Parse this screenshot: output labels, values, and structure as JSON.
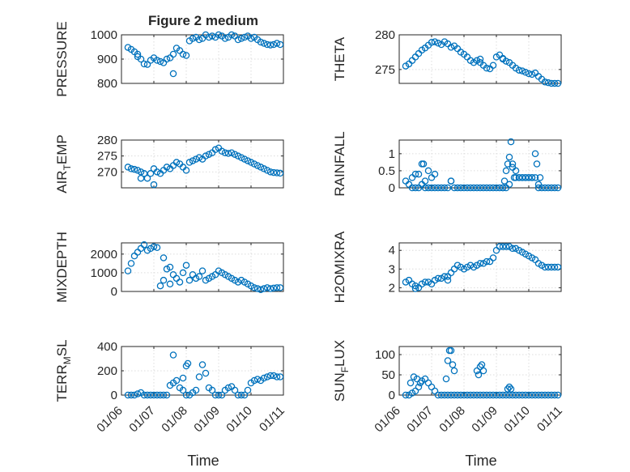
{
  "figure_title": "Figure 2 medium",
  "x_tick_labels": [
    "01/06",
    "01/07",
    "01/08",
    "01/09",
    "01/10",
    "01/11"
  ],
  "x_label": "Time",
  "colors": {
    "marker": "#0072BD",
    "axis": "#262626",
    "grid": "#dcdcdc"
  },
  "chart_data": [
    {
      "type": "scatter",
      "ylabel": "PRESSURE",
      "ylim": [
        800,
        1000
      ],
      "yticks": [
        800,
        900,
        1000
      ],
      "xlim": [
        0,
        5
      ],
      "x": [
        0.2,
        0.3,
        0.4,
        0.5,
        0.6,
        0.7,
        0.8,
        0.9,
        1.0,
        1.1,
        1.2,
        1.3,
        1.4,
        1.5,
        1.6,
        1.7,
        1.8,
        1.9,
        2.0,
        2.1,
        2.2,
        2.3,
        2.4,
        2.5,
        2.6,
        2.7,
        2.8,
        2.9,
        3.0,
        3.1,
        3.2,
        3.3,
        3.4,
        3.5,
        3.6,
        3.7,
        3.8,
        3.9,
        4.0,
        4.1,
        4.2,
        4.3,
        4.4,
        4.5,
        4.6,
        4.7,
        4.8,
        4.9,
        1.6,
        0.5
      ],
      "y": [
        948,
        940,
        930,
        920,
        900,
        880,
        878,
        895,
        905,
        895,
        890,
        885,
        900,
        905,
        920,
        945,
        935,
        920,
        915,
        975,
        985,
        990,
        980,
        985,
        1000,
        990,
        995,
        990,
        1000,
        995,
        985,
        990,
        1000,
        995,
        980,
        985,
        990,
        995,
        985,
        990,
        980,
        970,
        965,
        960,
        958,
        960,
        965,
        960,
        840,
        910
      ]
    },
    {
      "type": "scatter",
      "ylabel": "THETA",
      "ylim": [
        273,
        280
      ],
      "yticks": [
        275,
        280
      ],
      "xlim": [
        0,
        5
      ],
      "x": [
        0.2,
        0.3,
        0.4,
        0.5,
        0.6,
        0.7,
        0.8,
        0.9,
        1.0,
        1.1,
        1.2,
        1.3,
        1.4,
        1.5,
        1.6,
        1.7,
        1.8,
        1.9,
        2.0,
        2.1,
        2.2,
        2.3,
        2.4,
        2.5,
        2.6,
        2.7,
        2.8,
        2.9,
        3.0,
        3.1,
        3.2,
        3.3,
        3.4,
        3.5,
        3.6,
        3.7,
        3.8,
        3.9,
        4.0,
        4.1,
        4.2,
        4.3,
        4.4,
        4.5,
        4.6,
        4.7,
        4.8,
        4.9,
        2.5,
        3.2
      ],
      "y": [
        275.5,
        275.8,
        276.3,
        276.8,
        277.3,
        277.8,
        278.1,
        278.5,
        278.9,
        279.0,
        278.8,
        278.6,
        279.0,
        278.7,
        278.2,
        278.4,
        278.0,
        277.5,
        277.2,
        276.8,
        276.3,
        276.0,
        276.3,
        276.0,
        275.6,
        275.2,
        275.1,
        275.6,
        276.8,
        277.1,
        276.5,
        276.2,
        276.0,
        275.6,
        275.2,
        274.9,
        274.8,
        274.6,
        274.4,
        274.3,
        274.5,
        274.0,
        273.6,
        273.2,
        273.1,
        273.0,
        273.0,
        273.0,
        276.5,
        276.6
      ]
    },
    {
      "type": "scatter",
      "ylabel": "AIR_TEMP",
      "ylim": [
        265,
        280
      ],
      "yticks": [
        270,
        275,
        280
      ],
      "xlim": [
        0,
        5
      ],
      "x": [
        0.2,
        0.3,
        0.4,
        0.5,
        0.6,
        0.7,
        0.8,
        0.9,
        1.0,
        1.1,
        1.2,
        1.3,
        1.4,
        1.5,
        1.6,
        1.7,
        1.8,
        1.9,
        2.0,
        2.1,
        2.2,
        2.3,
        2.4,
        2.5,
        2.6,
        2.7,
        2.8,
        2.9,
        3.0,
        3.1,
        3.2,
        3.3,
        3.4,
        3.5,
        3.6,
        3.7,
        3.8,
        3.9,
        4.0,
        4.1,
        4.2,
        4.3,
        4.4,
        4.5,
        4.6,
        4.7,
        4.8,
        4.9,
        1.0,
        0.6
      ],
      "y": [
        271.5,
        271.0,
        270.8,
        270.5,
        270.0,
        269.5,
        268.0,
        269.5,
        271.0,
        270.0,
        269.5,
        270.5,
        271.5,
        271.0,
        272.0,
        273.0,
        272.5,
        271.5,
        270.5,
        273.0,
        273.5,
        274.0,
        274.5,
        274.0,
        275.0,
        275.5,
        276.0,
        277.0,
        277.5,
        276.5,
        276.0,
        275.8,
        276.0,
        275.5,
        275.0,
        274.5,
        274.0,
        273.5,
        273.0,
        272.5,
        272.0,
        271.5,
        271.0,
        270.5,
        270.0,
        269.8,
        269.7,
        269.6,
        266.0,
        268.0
      ]
    },
    {
      "type": "scatter",
      "ylabel": "RAINFALL",
      "ylim": [
        0,
        1.4
      ],
      "yticks": [
        0,
        0.5,
        1
      ],
      "xlim": [
        0,
        5
      ],
      "x": [
        0.2,
        0.3,
        0.4,
        0.5,
        0.6,
        0.7,
        0.8,
        0.9,
        1.0,
        1.1,
        1.2,
        1.3,
        1.4,
        1.5,
        1.6,
        1.7,
        1.8,
        1.9,
        2.0,
        2.1,
        2.2,
        2.3,
        2.4,
        2.5,
        2.6,
        2.7,
        2.8,
        2.9,
        3.0,
        3.1,
        3.2,
        3.3,
        3.4,
        3.5,
        3.6,
        3.7,
        3.8,
        3.9,
        4.0,
        4.1,
        4.2,
        4.3,
        4.4,
        4.5,
        4.6,
        4.7,
        4.8,
        4.9,
        0.4,
        0.5,
        0.6,
        0.7,
        0.75,
        0.8,
        0.9,
        1.0,
        1.1,
        1.6,
        3.2,
        3.25,
        3.3,
        3.35,
        3.4,
        3.45,
        3.5,
        3.55,
        3.6,
        3.7,
        3.8,
        3.9,
        4.0,
        4.1,
        4.2,
        4.25,
        4.3,
        4.35
      ],
      "y": [
        0.2,
        0.1,
        0.0,
        0.0,
        0.0,
        0.1,
        0.0,
        0.0,
        0.0,
        0.0,
        0.0,
        0.0,
        0.0,
        0.0,
        0.2,
        0.0,
        0.0,
        0.0,
        0.0,
        0.0,
        0.0,
        0.0,
        0.0,
        0.0,
        0.0,
        0.0,
        0.0,
        0.0,
        0.0,
        0.0,
        0.0,
        0.0,
        0.1,
        0.6,
        0.3,
        0.3,
        0.3,
        0.3,
        0.3,
        0.3,
        0.3,
        0.0,
        0.0,
        0.0,
        0.0,
        0.0,
        0.0,
        0.0,
        0.3,
        0.4,
        0.4,
        0.7,
        0.7,
        0.2,
        0.5,
        0.3,
        0.4,
        0.2,
        0.0,
        0.2,
        0.5,
        0.7,
        0.9,
        1.35,
        0.7,
        0.3,
        0.5,
        0.3,
        0.3,
        0.3,
        0.3,
        0.3,
        1.0,
        0.7,
        0.1,
        0.3
      ]
    },
    {
      "type": "scatter",
      "ylabel": "MIXDEPTH",
      "ylim": [
        0,
        2600
      ],
      "yticks": [
        0,
        1000,
        2000
      ],
      "xlim": [
        0,
        5
      ],
      "x": [
        0.2,
        0.3,
        0.4,
        0.5,
        0.6,
        0.7,
        0.8,
        0.9,
        1.0,
        1.1,
        1.2,
        1.3,
        1.4,
        1.5,
        1.6,
        1.7,
        1.8,
        1.9,
        2.0,
        2.1,
        2.2,
        2.3,
        2.4,
        2.5,
        2.6,
        2.7,
        2.8,
        2.9,
        3.0,
        3.1,
        3.2,
        3.3,
        3.4,
        3.5,
        3.6,
        3.7,
        3.8,
        3.9,
        4.0,
        4.1,
        4.2,
        4.3,
        4.4,
        4.5,
        4.6,
        4.7,
        4.8,
        4.9,
        1.3,
        1.5
      ],
      "y": [
        1100,
        1500,
        1900,
        2100,
        2300,
        2500,
        2200,
        2300,
        2400,
        2350,
        300,
        600,
        1200,
        400,
        900,
        700,
        500,
        1000,
        1400,
        600,
        900,
        700,
        800,
        1100,
        600,
        700,
        800,
        900,
        1100,
        1000,
        900,
        800,
        700,
        600,
        500,
        600,
        500,
        400,
        300,
        200,
        150,
        100,
        150,
        200,
        150,
        180,
        200,
        200,
        1800,
        1300
      ]
    },
    {
      "type": "scatter",
      "ylabel": "H2OMIXRA",
      "ylim": [
        1.8,
        4.4
      ],
      "yticks": [
        2,
        3,
        4
      ],
      "xlim": [
        0,
        5
      ],
      "x": [
        0.2,
        0.3,
        0.4,
        0.5,
        0.6,
        0.7,
        0.8,
        0.9,
        1.0,
        1.1,
        1.2,
        1.3,
        1.4,
        1.5,
        1.6,
        1.7,
        1.8,
        1.9,
        2.0,
        2.1,
        2.2,
        2.3,
        2.4,
        2.5,
        2.6,
        2.7,
        2.8,
        2.9,
        3.0,
        3.1,
        3.2,
        3.3,
        3.4,
        3.5,
        3.6,
        3.7,
        3.8,
        3.9,
        4.0,
        4.1,
        4.2,
        4.3,
        4.4,
        4.5,
        4.6,
        4.7,
        4.8,
        4.9,
        0.5,
        1.5
      ],
      "y": [
        2.3,
        2.4,
        2.2,
        2.1,
        2.0,
        2.2,
        2.3,
        2.3,
        2.2,
        2.4,
        2.5,
        2.5,
        2.6,
        2.6,
        2.8,
        3.0,
        3.2,
        3.1,
        3.0,
        3.1,
        3.2,
        3.1,
        3.2,
        3.3,
        3.3,
        3.4,
        3.4,
        3.6,
        4.0,
        4.2,
        4.2,
        4.2,
        4.2,
        4.1,
        4.1,
        4.0,
        3.9,
        3.8,
        3.7,
        3.6,
        3.5,
        3.3,
        3.2,
        3.1,
        3.1,
        3.1,
        3.1,
        3.1,
        1.95,
        2.4
      ]
    },
    {
      "type": "scatter",
      "ylabel": "TERR_MSL",
      "ylim": [
        0,
        400
      ],
      "yticks": [
        0,
        200,
        400
      ],
      "xlim": [
        0,
        5
      ],
      "x": [
        0.2,
        0.3,
        0.4,
        0.5,
        0.6,
        0.7,
        0.8,
        0.9,
        1.0,
        1.1,
        1.2,
        1.3,
        1.4,
        1.5,
        1.6,
        1.7,
        1.8,
        1.9,
        2.0,
        2.1,
        2.2,
        2.3,
        2.4,
        2.5,
        2.6,
        2.7,
        2.8,
        2.9,
        3.0,
        3.1,
        3.2,
        3.3,
        3.4,
        3.5,
        3.6,
        3.7,
        3.8,
        3.9,
        4.0,
        4.1,
        4.2,
        4.3,
        4.4,
        4.5,
        4.6,
        4.7,
        4.8,
        4.9,
        1.9,
        2.0,
        2.05,
        1.6
      ],
      "y": [
        0,
        0,
        0,
        10,
        20,
        0,
        0,
        0,
        0,
        0,
        0,
        0,
        0,
        80,
        100,
        120,
        60,
        40,
        0,
        0,
        20,
        40,
        150,
        250,
        180,
        60,
        40,
        0,
        0,
        0,
        40,
        60,
        70,
        40,
        0,
        0,
        0,
        40,
        100,
        120,
        130,
        120,
        140,
        150,
        160,
        160,
        150,
        150,
        140,
        240,
        260,
        330
      ]
    },
    {
      "type": "scatter",
      "ylabel": "SUN_FLUX",
      "ylim": [
        0,
        120
      ],
      "yticks": [
        0,
        50,
        100
      ],
      "xlim": [
        0,
        5
      ],
      "x": [
        0.2,
        0.3,
        0.4,
        0.5,
        0.6,
        0.7,
        0.8,
        0.9,
        1.0,
        1.1,
        1.2,
        1.3,
        1.4,
        1.5,
        1.6,
        1.7,
        1.8,
        1.9,
        2.0,
        2.1,
        2.2,
        2.3,
        2.4,
        2.5,
        2.6,
        2.7,
        2.8,
        2.9,
        3.0,
        3.1,
        3.2,
        3.3,
        3.4,
        3.5,
        3.6,
        3.7,
        3.8,
        3.9,
        4.0,
        4.1,
        4.2,
        4.3,
        4.4,
        4.5,
        4.6,
        4.7,
        4.8,
        4.9,
        0.35,
        0.45,
        0.55,
        0.65,
        1.45,
        1.5,
        1.55,
        1.6,
        1.65,
        1.7,
        2.4,
        2.45,
        2.5,
        2.55,
        2.6,
        3.35,
        3.4,
        3.45
      ],
      "y": [
        0,
        0,
        5,
        10,
        20,
        35,
        40,
        30,
        20,
        10,
        0,
        0,
        0,
        0,
        0,
        0,
        0,
        0,
        0,
        0,
        0,
        0,
        0,
        0,
        0,
        0,
        0,
        0,
        0,
        0,
        0,
        0,
        0,
        0,
        0,
        0,
        0,
        0,
        0,
        0,
        0,
        0,
        0,
        0,
        0,
        0,
        0,
        0,
        30,
        45,
        40,
        30,
        40,
        85,
        110,
        110,
        75,
        60,
        60,
        50,
        70,
        75,
        60,
        15,
        20,
        15
      ]
    }
  ]
}
